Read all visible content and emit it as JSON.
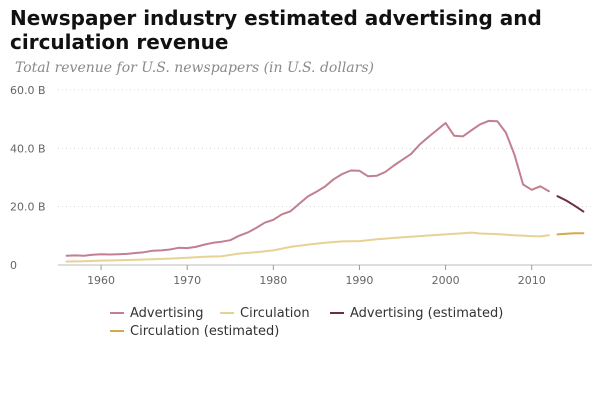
{
  "chart_data": {
    "type": "line",
    "title": "Newspaper industry estimated advertising and circulation revenue",
    "subtitle": "Total revenue for U.S. newspapers (in U.S. dollars)",
    "xlabel": "",
    "ylabel": "",
    "xlim": [
      1955,
      2017
    ],
    "ylim": [
      0,
      60
    ],
    "x_ticks": [
      1960,
      1970,
      1980,
      1990,
      2000,
      2010
    ],
    "y_ticks": [
      {
        "value": 0,
        "label": "0"
      },
      {
        "value": 20,
        "label": "20.0 B"
      },
      {
        "value": 40,
        "label": "40.0 B"
      },
      {
        "value": 60,
        "label": "60.0 B"
      }
    ],
    "grid": "horizontal dotted",
    "legend_position": "bottom",
    "series": [
      {
        "name": "Advertising",
        "color": "#c17f8f",
        "dashed": false,
        "x": [
          1956,
          1957,
          1958,
          1959,
          1960,
          1961,
          1962,
          1963,
          1964,
          1965,
          1966,
          1967,
          1968,
          1969,
          1970,
          1971,
          1972,
          1973,
          1974,
          1975,
          1976,
          1977,
          1978,
          1979,
          1980,
          1981,
          1982,
          1983,
          1984,
          1985,
          1986,
          1987,
          1988,
          1989,
          1990,
          1991,
          1992,
          1993,
          1994,
          1995,
          1996,
          1997,
          1998,
          1999,
          2000,
          2001,
          2002,
          2003,
          2004,
          2005,
          2006,
          2007,
          2008,
          2009,
          2010,
          2011,
          2012
        ],
        "y": [
          3.2,
          3.3,
          3.2,
          3.5,
          3.7,
          3.6,
          3.7,
          3.8,
          4.1,
          4.4,
          4.9,
          5.0,
          5.3,
          5.9,
          5.8,
          6.2,
          7.0,
          7.6,
          8.0,
          8.5,
          10.0,
          11.1,
          12.7,
          14.5,
          15.5,
          17.4,
          18.4,
          21.0,
          23.5,
          25.1,
          26.9,
          29.4,
          31.2,
          32.4,
          32.3,
          30.4,
          30.6,
          31.9,
          34.1,
          36.1,
          38.1,
          41.3,
          43.9,
          46.3,
          48.7,
          44.3,
          44.1,
          46.2,
          48.2,
          49.4,
          49.3,
          45.4,
          37.8,
          27.6,
          25.8,
          27.0,
          25.3
        ]
      },
      {
        "name": "Circulation",
        "color": "#e8d195",
        "dashed": false,
        "x": [
          1956,
          1958,
          1960,
          1962,
          1964,
          1966,
          1968,
          1970,
          1972,
          1974,
          1976,
          1978,
          1980,
          1982,
          1984,
          1986,
          1988,
          1990,
          1992,
          1994,
          1996,
          1998,
          2000,
          2002,
          2003,
          2004,
          2006,
          2008,
          2010,
          2011,
          2012
        ],
        "y": [
          1.2,
          1.3,
          1.5,
          1.6,
          1.8,
          2.0,
          2.2,
          2.5,
          2.8,
          3.0,
          3.9,
          4.4,
          5.0,
          6.2,
          7.0,
          7.6,
          8.1,
          8.2,
          8.8,
          9.3,
          9.7,
          10.1,
          10.5,
          10.9,
          11.1,
          10.8,
          10.6,
          10.2,
          9.9,
          9.8,
          10.2
        ]
      },
      {
        "name": "Advertising (estimated)",
        "color": "#6b2f3e",
        "dashed": false,
        "x": [
          2013,
          2014,
          2015,
          2016
        ],
        "y": [
          23.6,
          22.1,
          20.3,
          18.3
        ]
      },
      {
        "name": "Circulation (estimated)",
        "color": "#d4a84b",
        "dashed": false,
        "x": [
          2013,
          2014,
          2015,
          2016
        ],
        "y": [
          10.5,
          10.7,
          10.9,
          10.9
        ]
      }
    ]
  }
}
